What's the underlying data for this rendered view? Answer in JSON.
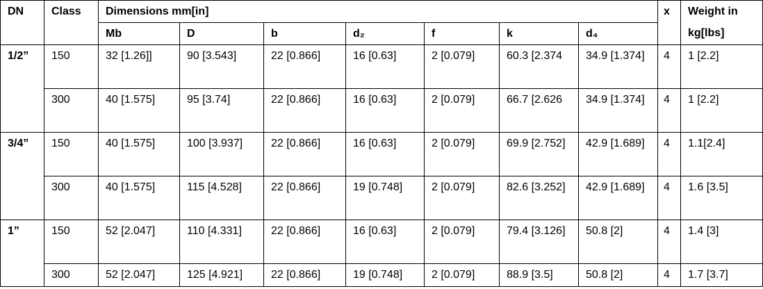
{
  "table": {
    "header": {
      "dn": "DN",
      "class": "Class",
      "dimensions": "Dimensions mm[in]",
      "x": "x",
      "weight": "Weight in kg[lbs]",
      "columns": [
        "Mb",
        "D",
        "b",
        "d₂",
        "f",
        "k",
        "d₄"
      ]
    },
    "groups": [
      {
        "dn": "1/2”",
        "rows": [
          [
            "150",
            "32 [1.26]]",
            "90 [3.543]",
            "22 [0.866]",
            "16 [0.63]",
            "2 [0.079]",
            "60.3 [2.374",
            "34.9 [1.374]",
            "4",
            "1 [2.2]"
          ],
          [
            "300",
            "40 [1.575]",
            "95 [3.74]",
            "22 [0.866]",
            "16 [0.63]",
            "2 [0.079]",
            "66.7 [2.626",
            "34.9 [1.374]",
            "4",
            "1 [2.2]"
          ]
        ]
      },
      {
        "dn": "3/4”",
        "rows": [
          [
            "150",
            "40 [1.575]",
            "100 [3.937]",
            "22 [0.866]",
            "16 [0.63]",
            "2 [0.079]",
            "69.9 [2.752]",
            "42.9 [1.689]",
            "4",
            "1.1[2.4]"
          ],
          [
            "300",
            "40 [1.575]",
            "115 [4.528]",
            "22 [0.866]",
            "19 [0.748]",
            "2 [0.079]",
            "82.6 [3.252]",
            "42.9 [1.689]",
            "4",
            "1.6 [3.5]"
          ]
        ]
      },
      {
        "dn": "1”",
        "rows": [
          [
            "150",
            "52 [2.047]",
            "110 [4.331]",
            "22 [0.866]",
            "16 [0.63]",
            "2 [0.079]",
            "79.4 [3.126]",
            "50.8 [2]",
            "4",
            "1.4 [3]"
          ],
          [
            "300",
            "52 [2.047]",
            "125 [4.921]",
            "22 [0.866]",
            "19 [0.748]",
            "2 [0.079]",
            "88.9 [3.5]",
            "50.8 [2]",
            "4",
            "1.7 [3.7]"
          ]
        ]
      }
    ]
  }
}
